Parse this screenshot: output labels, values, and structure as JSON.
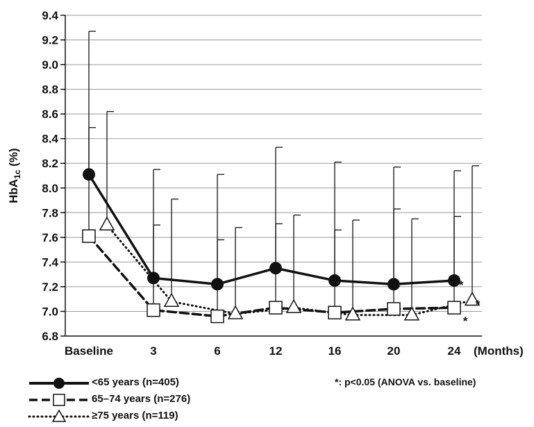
{
  "chart_data": {
    "type": "line",
    "categories": [
      "Baseline",
      "3",
      "6",
      "12",
      "16",
      "20",
      "24"
    ],
    "x_unit_label": "(Months)",
    "ylabel_main": "HbA",
    "ylabel_sub": "1c",
    "ylabel_unit": " (%)",
    "ylim": [
      6.8,
      9.4
    ],
    "yticks": [
      "6.8",
      "7.0",
      "7.2",
      "7.4",
      "7.6",
      "7.8",
      "8.0",
      "8.2",
      "8.4",
      "8.6",
      "8.8",
      "9.0",
      "9.2",
      "9.4"
    ],
    "grid": true,
    "series": [
      {
        "name": "<65 years (n=405)",
        "values": [
          8.11,
          7.27,
          7.22,
          7.35,
          7.25,
          7.22,
          7.25
        ],
        "error_upper": [
          9.27,
          8.15,
          8.11,
          8.33,
          8.21,
          8.17,
          8.14
        ],
        "marker": "filled-circle",
        "line_style": "solid",
        "significance": "*"
      },
      {
        "name": "65–74 years (n=276)",
        "values": [
          7.61,
          7.01,
          6.96,
          7.03,
          6.99,
          7.02,
          7.03
        ],
        "error_upper": [
          8.49,
          7.7,
          7.58,
          7.71,
          7.66,
          7.83,
          7.77
        ],
        "marker": "open-square",
        "line_style": "dashed",
        "significance": "*"
      },
      {
        "name": "≥75 years (n=119)",
        "values": [
          7.7,
          7.08,
          6.98,
          7.03,
          6.97,
          6.97,
          7.09
        ],
        "error_upper": [
          8.62,
          7.91,
          7.68,
          7.78,
          7.74,
          7.75,
          8.18
        ],
        "marker": "open-triangle",
        "line_style": "dotted",
        "significance": "*"
      }
    ],
    "annotation": "*: p<0.05 (ANOVA vs. baseline)",
    "legend_position": "bottom-left"
  }
}
